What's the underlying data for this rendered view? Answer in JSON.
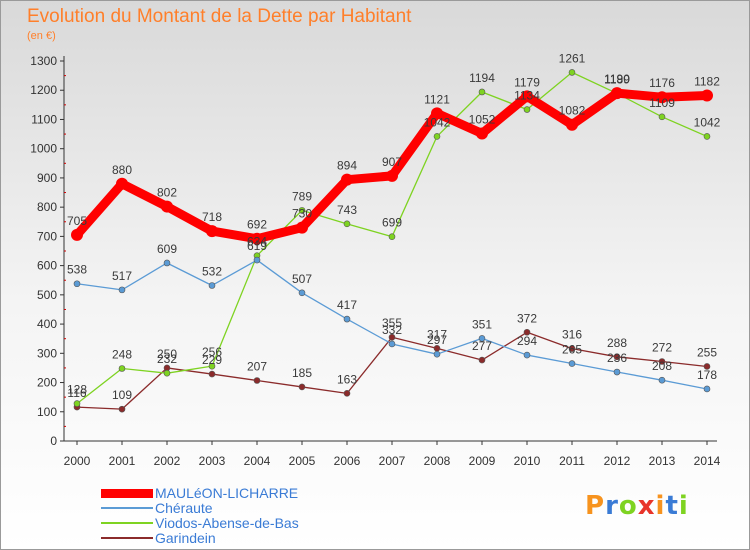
{
  "chart_data": {
    "type": "line",
    "title": "Evolution du Montant de la Dette par Habitant",
    "subtitle": "(en €)",
    "x": [
      "2000",
      "2001",
      "2002",
      "2003",
      "2004",
      "2005",
      "2006",
      "2007",
      "2008",
      "2009",
      "2010",
      "2011",
      "2012",
      "2013",
      "2014"
    ],
    "ylim": [
      0,
      1300
    ],
    "yticks": [
      0,
      100,
      200,
      300,
      400,
      500,
      600,
      700,
      800,
      900,
      1000,
      1100,
      1200,
      1300
    ],
    "grid": false,
    "legend_position": "bottom-left",
    "series": [
      {
        "name": "MAULéON-LICHARRE",
        "color": "#ff0000",
        "values": [
          705,
          880,
          802,
          718,
          692,
          730,
          894,
          907,
          1121,
          1052,
          1179,
          1082,
          1190,
          1176,
          1182
        ]
      },
      {
        "name": "Chéraute",
        "color": "#5b9bd5",
        "values": [
          538,
          517,
          609,
          532,
          619,
          507,
          417,
          332,
          297,
          351,
          294,
          265,
          236,
          208,
          178
        ]
      },
      {
        "name": "Viodos-Abense-de-Bas",
        "color": "#7ed321",
        "values": [
          128,
          248,
          232,
          256,
          634,
          789,
          743,
          699,
          1042,
          1194,
          1134,
          1261,
          1189,
          1109,
          1042
        ]
      },
      {
        "name": "Garindein",
        "color": "#8b2b2b",
        "values": [
          116,
          109,
          250,
          229,
          207,
          185,
          163,
          355,
          317,
          277,
          372,
          316,
          288,
          272,
          255
        ]
      }
    ]
  },
  "logo": {
    "text": "Proxiti"
  }
}
